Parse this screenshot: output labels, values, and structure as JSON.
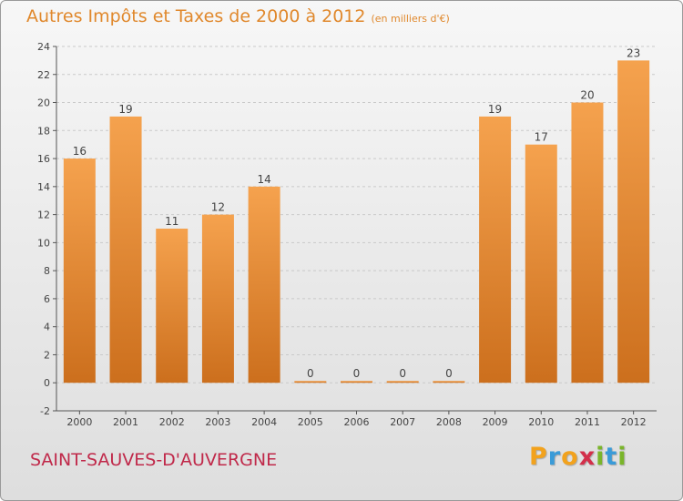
{
  "header": {
    "title": "Autres Impôts et Taxes de 2000 à 2012",
    "unit": "(en milliers d'€)"
  },
  "footer": {
    "commune": "SAINT-SAUVES-D'AUVERGNE",
    "logo": {
      "letters": [
        "P",
        "r",
        "o",
        "x",
        "i",
        "t",
        "i"
      ],
      "colors": [
        "#f2a21d",
        "#3a9bd8",
        "#f2a21d",
        "#d32f4a",
        "#7ab52a",
        "#3a9bd8",
        "#7ab52a"
      ]
    }
  },
  "colors": {
    "bar_light": "#f5a24e",
    "bar_dark": "#cc6f1d",
    "title": "#e0882c",
    "commune": "#c0294a",
    "grid": "#c9c9c9"
  },
  "chart_data": {
    "type": "bar",
    "categories": [
      "2000",
      "2001",
      "2002",
      "2003",
      "2004",
      "2005",
      "2006",
      "2007",
      "2008",
      "2009",
      "2010",
      "2011",
      "2012"
    ],
    "values": [
      16,
      19,
      11,
      12,
      14,
      0,
      0,
      0,
      0,
      19,
      17,
      20,
      23
    ],
    "data_labels": [
      "16",
      "19",
      "11",
      "12",
      "14",
      "0",
      "0",
      "0",
      "0",
      "19",
      "17",
      "20",
      "23"
    ],
    "ylim": [
      -2,
      24
    ],
    "yticks": [
      -2,
      0,
      2,
      4,
      6,
      8,
      10,
      12,
      14,
      16,
      18,
      20,
      22,
      24
    ],
    "ytick_labels": [
      "-2",
      "0",
      "2",
      "4",
      "6",
      "8",
      "10",
      "12",
      "14",
      "16",
      "18",
      "20",
      "22",
      "24"
    ],
    "grid": true
  }
}
